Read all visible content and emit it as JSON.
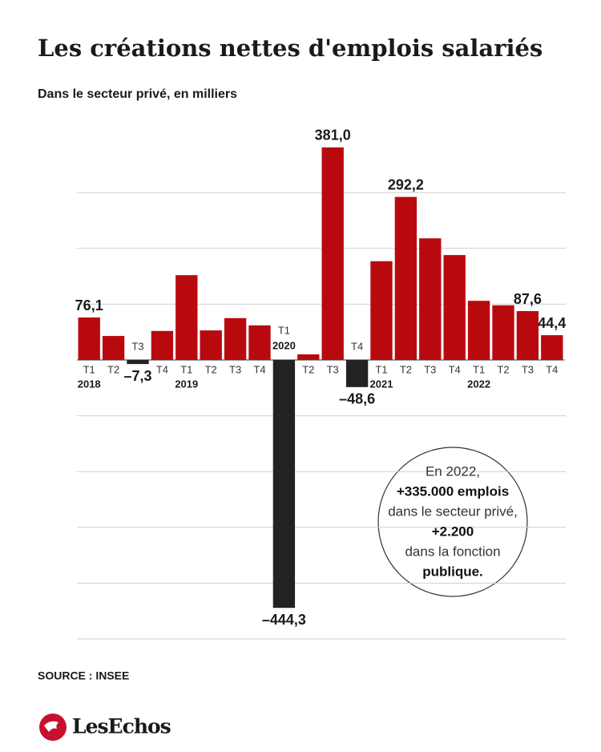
{
  "chart_data": {
    "type": "bar",
    "title": "Les créations nettes d'emplois salariés",
    "subtitle": "Dans le secteur privé, en milliers",
    "categories": [
      "T1",
      "T2",
      "T3",
      "T4",
      "T1",
      "T2",
      "T3",
      "T4",
      "T1",
      "T2",
      "T3",
      "T4",
      "T1",
      "T2",
      "T3",
      "T4",
      "T1",
      "T2",
      "T3",
      "T4"
    ],
    "year_labels": [
      "2018",
      null,
      null,
      null,
      "2019",
      null,
      null,
      null,
      "2020",
      null,
      null,
      null,
      "2021",
      null,
      null,
      null,
      "2022",
      null,
      null,
      null
    ],
    "values": [
      76.1,
      43,
      -7.3,
      52,
      152,
      53,
      75,
      62,
      -444.3,
      10,
      381.0,
      -48.6,
      177,
      292.2,
      218,
      188,
      106,
      98,
      87.6,
      44.4
    ],
    "value_labels": [
      "76,1",
      null,
      "–7,3",
      null,
      null,
      null,
      null,
      null,
      "–444,3",
      null,
      "381,0",
      "–48,6",
      null,
      "292,2",
      null,
      null,
      null,
      null,
      "87,6",
      "44,4"
    ],
    "color_positive": "#b80a0e",
    "color_negative": "#222222",
    "ylim": [
      -500,
      400
    ],
    "yticks": [
      -500,
      -400,
      -300,
      -200,
      -100,
      0,
      100,
      200,
      300
    ],
    "grid": true,
    "annotation": [
      "En 2022,",
      "+335.000 emplois",
      "dans le secteur privé,",
      "+2.200",
      "dans la fonction",
      "publique."
    ],
    "source": "SOURCE : INSEE",
    "logo": "LesEchos"
  }
}
